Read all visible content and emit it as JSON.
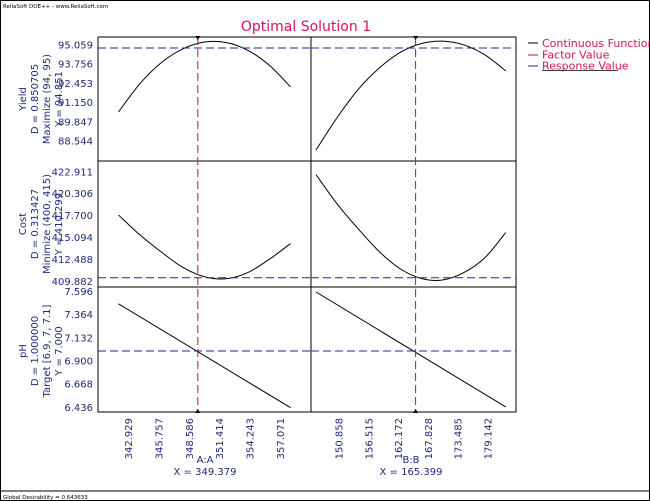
{
  "header": {
    "credit": "ReliaSoft DOE++ - www.ReliaSoft.com"
  },
  "footer": {
    "global_desirability": "Global Desirability = 0.643633"
  },
  "colors": {
    "title": "#d4145a",
    "axis_text": "#1f2a78",
    "factor_value": "#b0154a",
    "response_value": "#1a2e99",
    "curve": "#000000",
    "frame": "#000000"
  },
  "chart_data": {
    "type": "line",
    "title": "Optimal Solution 1",
    "legend": {
      "placement": "top-right",
      "entries": [
        "Continuous Function",
        "Factor Value",
        "Response Value"
      ]
    },
    "factors": [
      {
        "name": "A:A",
        "setting_label": "X = 349.379",
        "setting": 349.379,
        "xlim": [
          340.1,
          359.9
        ],
        "ticks": [
          "342.929",
          "345.757",
          "348.586",
          "351.414",
          "354.243",
          "357.071"
        ],
        "tick_values": [
          342.929,
          345.757,
          348.586,
          351.414,
          354.243,
          357.071
        ]
      },
      {
        "name": "B:B",
        "setting_label": "X = 165.399",
        "setting": 165.399,
        "xlim": [
          145.544,
          184.456
        ],
        "ticks": [
          "150.858",
          "156.515",
          "162.172",
          "167.828",
          "173.485",
          "179.142"
        ],
        "tick_values": [
          150.858,
          156.515,
          162.172,
          167.828,
          173.485,
          179.142
        ]
      }
    ],
    "responses": [
      {
        "name": "Yield",
        "desirability": "D = 0.850705",
        "goal": "Maximize (94, 95)",
        "value_label": "Y = 94.851",
        "value": 94.851,
        "ylim": [
          87.2,
          95.6
        ],
        "ticks": [
          "95.059",
          "93.756",
          "92.453",
          "91.150",
          "89.847",
          "88.544"
        ],
        "tick_values": [
          95.059,
          93.756,
          92.453,
          91.15,
          89.847,
          88.544
        ],
        "curves": [
          {
            "x": [
              342.0,
              344.0,
              346.0,
              348.0,
              350.0,
              352.0,
              354.0,
              356.0,
              358.0
            ],
            "y": [
              90.52,
              92.44,
              93.87,
              94.8,
              95.26,
              95.23,
              94.71,
              93.7,
              92.22
            ]
          },
          {
            "x": [
              146.5,
              150.5,
              154.5,
              158.5,
              162.5,
              166.5,
              170.5,
              174.5,
              178.5,
              182.5
            ],
            "y": [
              87.95,
              90.14,
              92.05,
              93.5,
              94.56,
              95.16,
              95.32,
              95.07,
              94.4,
              93.31
            ]
          }
        ]
      },
      {
        "name": "Cost",
        "desirability": "D = 0.313427",
        "goal": "Minimize (400, 415)",
        "value_label": "Y = 410.299",
        "value": 410.299,
        "ylim": [
          409.2,
          424.2
        ],
        "ticks": [
          "422.911",
          "420.306",
          "417.700",
          "415.094",
          "412.488",
          "409.882"
        ],
        "tick_values": [
          422.911,
          420.306,
          417.7,
          415.094,
          412.488,
          409.882
        ],
        "curves": [
          {
            "x": [
              342.0,
              344.0,
              346.0,
              348.0,
              350.0,
              352.0,
              354.0,
              356.0,
              358.0
            ],
            "y": [
              417.78,
              415.4,
              413.35,
              411.53,
              410.42,
              410.18,
              410.9,
              412.48,
              414.37
            ]
          },
          {
            "x": [
              146.5,
              150.5,
              154.5,
              158.5,
              162.5,
              166.5,
              170.5,
              174.5,
              178.5,
              182.5
            ],
            "y": [
              422.58,
              419.09,
              416.13,
              413.41,
              411.36,
              410.21,
              410.03,
              410.9,
              412.65,
              415.68
            ]
          }
        ]
      },
      {
        "name": "pH",
        "desirability": "D = 1.000000",
        "goal": "Target [6.9, 7, 7.1]",
        "value_label": "Y = 7.000",
        "value": 7.0,
        "ylim": [
          6.39,
          7.64
        ],
        "ticks": [
          "7.596",
          "7.364",
          "7.132",
          "6.900",
          "6.668",
          "6.436"
        ],
        "tick_values": [
          7.596,
          7.364,
          7.132,
          6.9,
          6.668,
          6.436
        ],
        "curves": [
          {
            "x": [
              342.0,
              358.0
            ],
            "y": [
              7.472,
              6.433
            ]
          },
          {
            "x": [
              146.5,
              182.5
            ],
            "y": [
              7.59,
              6.441
            ]
          }
        ]
      }
    ]
  }
}
